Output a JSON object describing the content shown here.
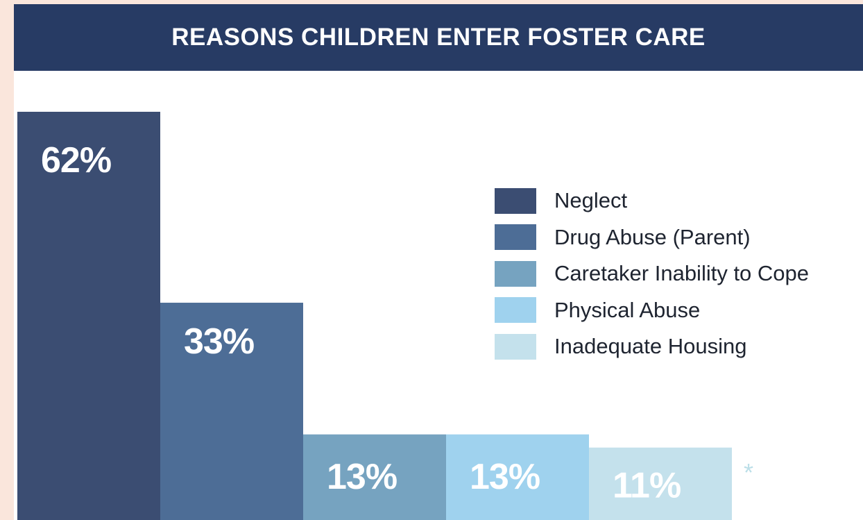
{
  "chart_data": {
    "type": "bar",
    "title": "REASONS CHILDREN ENTER FOSTER CARE",
    "categories": [
      "Neglect",
      "Drug Abuse (Parent)",
      "Caretaker Inability to Cope",
      "Physical Abuse",
      "Inadequate Housing"
    ],
    "values": [
      62,
      33,
      13,
      13,
      11
    ],
    "value_labels": [
      "62%",
      "33%",
      "13%",
      "13%",
      "11%"
    ],
    "colors": [
      "#3b4d72",
      "#4d6d96",
      "#76a3c0",
      "#9fd2ee",
      "#c4e1ec"
    ],
    "ylim": [
      0,
      62
    ],
    "grid": false,
    "legend_position": "right",
    "xlabel": "",
    "ylabel": ""
  },
  "footnote": "*"
}
